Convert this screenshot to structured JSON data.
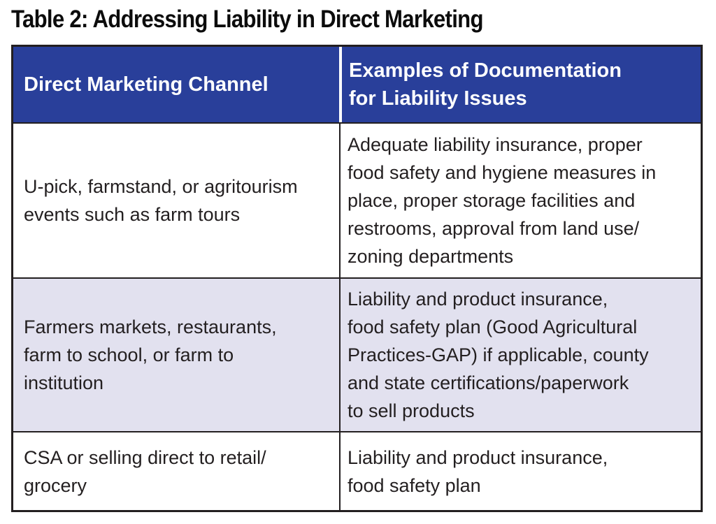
{
  "title": "Table 2: Addressing Liability in Direct Marketing",
  "table": {
    "headers": [
      "Direct Marketing Channel",
      "Examples of Documentation\nfor Liability Issues"
    ],
    "rows": [
      {
        "channel": "U-pick, farmstand, or agritourism\nevents such as farm tours",
        "documentation": "Adequate liability insurance, proper\nfood safety and hygiene measures in\nplace, proper storage facilities and\nrestrooms, approval from land use/\nzoning departments"
      },
      {
        "channel": "Farmers markets, restaurants,\nfarm to school, or farm to\ninstitution",
        "documentation": "Liability and product insurance,\nfood safety plan (Good Agricultural\nPractices-GAP) if applicable, county\nand state certifications/paperwork\nto sell products"
      },
      {
        "channel": "CSA or selling direct to retail/\ngrocery",
        "documentation": "Liability and product insurance,\nfood safety plan"
      }
    ]
  },
  "colors": {
    "header_bg": "#293f9a",
    "header_text": "#ffffff",
    "alt_row_bg": "#e2e1ef",
    "row_bg": "#ffffff",
    "border": "#231f20",
    "body_text": "#231f20"
  }
}
